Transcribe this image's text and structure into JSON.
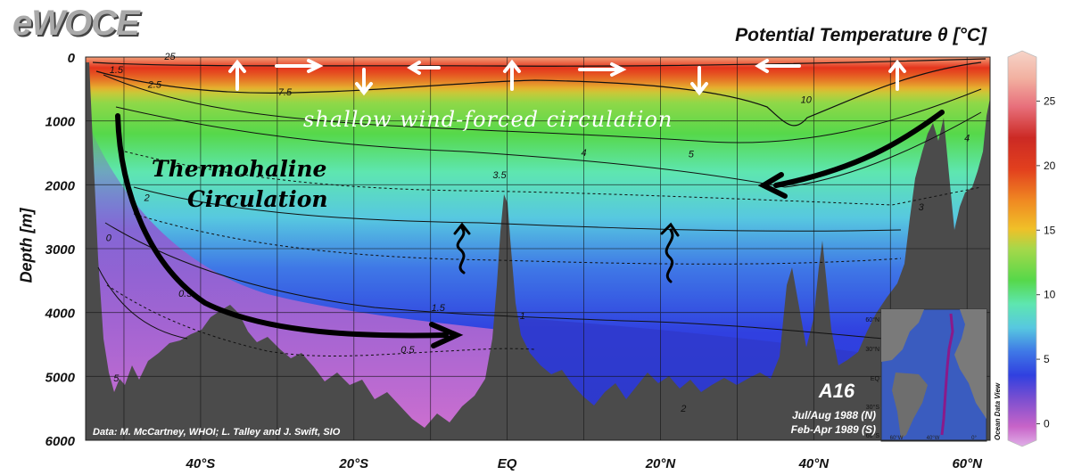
{
  "header": {
    "logo": "eWOCE",
    "title": "Potential Temperature θ [°C]",
    "ylabel": "Depth [m]"
  },
  "chart_data": {
    "type": "heatmap",
    "title": "Potential Temperature θ [°C]",
    "ylabel": "Depth [m]",
    "xlabel": "",
    "y_ticks": [
      0,
      1000,
      2000,
      3000,
      4000,
      5000,
      6000
    ],
    "y_tick_labels": [
      "0",
      "1000",
      "2000",
      "3000",
      "4000",
      "5000",
      "6000"
    ],
    "ylim": [
      0,
      6000
    ],
    "y_inverted": true,
    "xlim": [
      -55,
      63
    ],
    "x_ticks": [
      -40,
      -20,
      0,
      20,
      40,
      60
    ],
    "x_tick_labels": [
      "40°S",
      "20°S",
      "EQ",
      "20°N",
      "40°N",
      "60°N"
    ],
    "colorbar": {
      "ticks": [
        0,
        5,
        10,
        15,
        20,
        25
      ],
      "range": [
        -1,
        28
      ],
      "colors": [
        "#c864c8",
        "#7b4fd0",
        "#3040e0",
        "#3f78e6",
        "#57c8e0",
        "#5ee6b0",
        "#56d84a",
        "#a6d84a",
        "#f0c028",
        "#f08a22",
        "#e2401e",
        "#cc2a24",
        "#e8707c",
        "#f2b0a0",
        "#f6d4c8"
      ],
      "label": "Ocean Data View"
    },
    "contour_labels": [
      {
        "value": "25",
        "lat": -44,
        "depth": 40
      },
      {
        "value": "1.5",
        "lat": -51,
        "depth": 250
      },
      {
        "value": "2.5",
        "lat": -46,
        "depth": 480
      },
      {
        "value": "7.5",
        "lat": -29,
        "depth": 600
      },
      {
        "value": "10",
        "lat": 39,
        "depth": 720
      },
      {
        "value": "4",
        "lat": 10,
        "depth": 1550
      },
      {
        "value": "5",
        "lat": 24,
        "depth": 1570
      },
      {
        "value": "4",
        "lat": 60,
        "depth": 1320
      },
      {
        "value": "2",
        "lat": -47,
        "depth": 2250
      },
      {
        "value": "3.5",
        "lat": -1,
        "depth": 1900
      },
      {
        "value": "3",
        "lat": 54,
        "depth": 2400
      },
      {
        "value": "0",
        "lat": -52,
        "depth": 2880
      },
      {
        "value": "0.5",
        "lat": -42,
        "depth": 3750
      },
      {
        "value": "1.5",
        "lat": -9,
        "depth": 3980
      },
      {
        "value": "1",
        "lat": 2,
        "depth": 4100
      },
      {
        "value": "0.5",
        "lat": -13,
        "depth": 4630
      },
      {
        "value": "5",
        "lat": -51,
        "depth": 5080
      },
      {
        "value": "2",
        "lat": 23,
        "depth": 5550
      }
    ],
    "annotations": [
      "shallow wind-forced circulation",
      "Thermohaline Circulation"
    ]
  },
  "footer": {
    "credit": "Data: M. McCartney, WHOI; L. Talley and J. Swift, SIO",
    "section": "A16",
    "dates_n": "Jul/Aug 1988 (N)",
    "dates_s": "Feb-Apr 1989 (S)"
  },
  "inset_map": {
    "lat_labels": [
      "60°N",
      "30°N",
      "EQ",
      "30°S",
      "60°S"
    ],
    "lon_labels": [
      "60°W",
      "40°W",
      "0°"
    ]
  }
}
